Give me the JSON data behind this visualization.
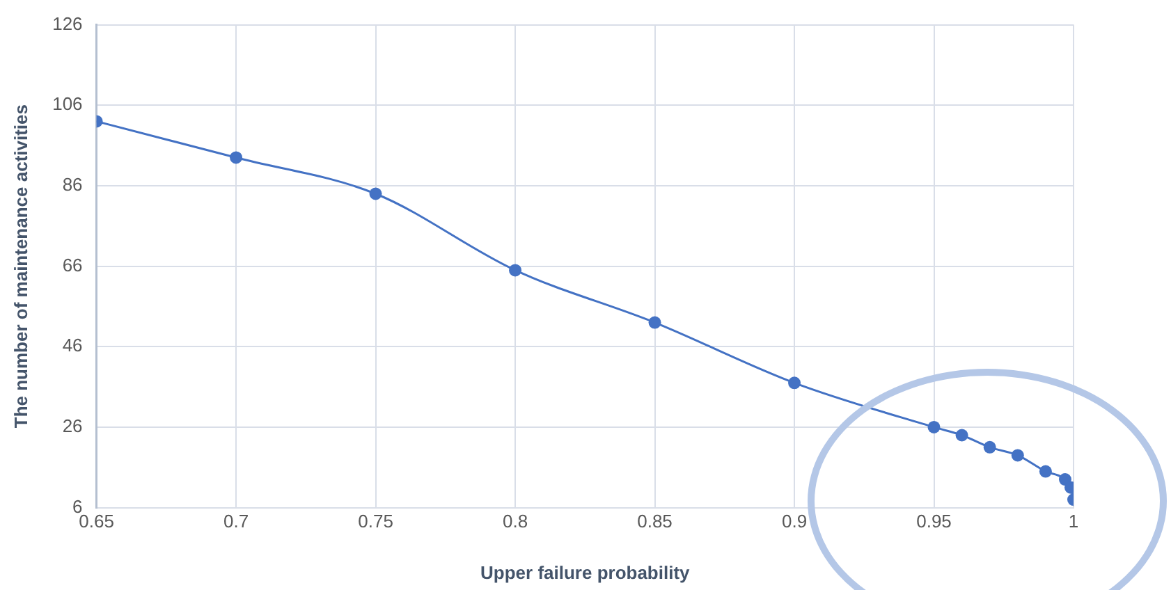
{
  "chart_data": {
    "type": "line",
    "xlabel": "Upper failure probability",
    "ylabel": "The number of maintenance activities",
    "x": [
      0.65,
      0.7,
      0.75,
      0.8,
      0.85,
      0.9,
      0.95,
      0.96,
      0.97,
      0.98,
      0.99,
      0.997,
      0.999,
      1
    ],
    "series": [
      {
        "color": "#4472c4",
        "values": [
          102,
          93,
          84,
          65,
          52,
          37,
          26,
          24,
          21,
          19,
          15,
          13,
          11,
          8
        ]
      }
    ],
    "xlim": [
      0.65,
      1
    ],
    "xticks": [
      0.65,
      0.7,
      0.75,
      0.8,
      0.85,
      0.9,
      0.95,
      1
    ],
    "ylim": [
      6,
      126
    ],
    "yticks": [
      6,
      26,
      46,
      66,
      86,
      106,
      126
    ],
    "grid": true,
    "legend": false,
    "marker": "circle",
    "line_style": "solid"
  }
}
